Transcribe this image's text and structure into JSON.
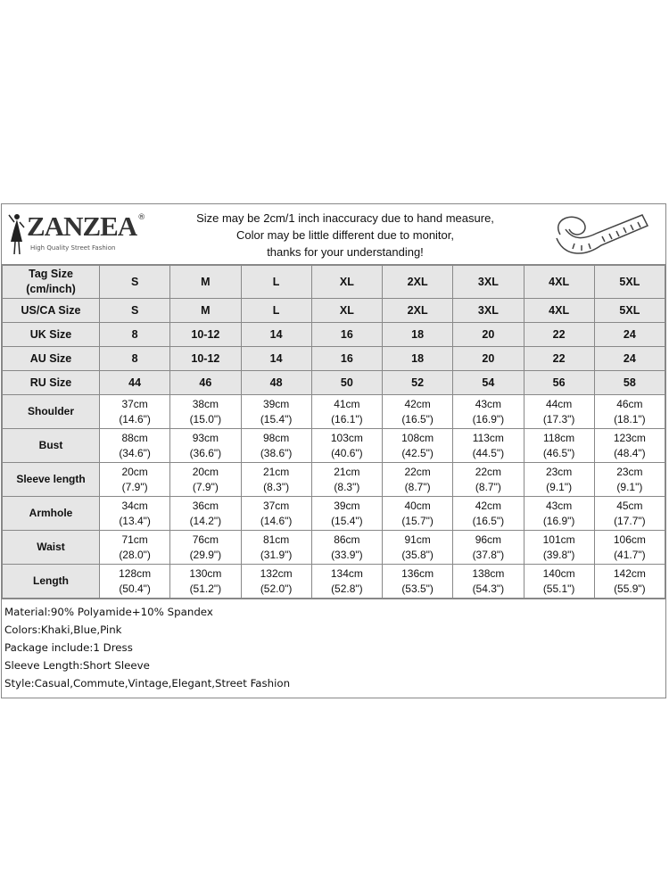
{
  "brand": {
    "name": "ZANZEA",
    "tagline": "High Quality Street Fashion",
    "reg": "®"
  },
  "notice": [
    "Size may be 2cm/1 inch inaccuracy due to hand measure,",
    "Color may be little different due to monitor,",
    "thanks for your understanding!"
  ],
  "size_rows": [
    {
      "label": "Tag Size\n(cm/inch)",
      "values": [
        "S",
        "M",
        "L",
        "XL",
        "2XL",
        "3XL",
        "4XL",
        "5XL"
      ]
    },
    {
      "label": "US/CA Size",
      "values": [
        "S",
        "M",
        "L",
        "XL",
        "2XL",
        "3XL",
        "4XL",
        "5XL"
      ]
    },
    {
      "label": "UK Size",
      "values": [
        "8",
        "10-12",
        "14",
        "16",
        "18",
        "20",
        "22",
        "24"
      ]
    },
    {
      "label": "AU Size",
      "values": [
        "8",
        "10-12",
        "14",
        "16",
        "18",
        "20",
        "22",
        "24"
      ]
    },
    {
      "label": "RU Size",
      "values": [
        "44",
        "46",
        "48",
        "50",
        "52",
        "54",
        "56",
        "58"
      ]
    }
  ],
  "measure_rows": [
    {
      "label": "Shoulder",
      "cm": [
        "37cm",
        "38cm",
        "39cm",
        "41cm",
        "42cm",
        "43cm",
        "44cm",
        "46cm"
      ],
      "inch": [
        "(14.6\")",
        "(15.0\")",
        "(15.4\")",
        "(16.1\")",
        "(16.5\")",
        "(16.9\")",
        "(17.3\")",
        "(18.1\")"
      ]
    },
    {
      "label": "Bust",
      "cm": [
        "88cm",
        "93cm",
        "98cm",
        "103cm",
        "108cm",
        "113cm",
        "118cm",
        "123cm"
      ],
      "inch": [
        "(34.6\")",
        "(36.6\")",
        "(38.6\")",
        "(40.6\")",
        "(42.5\")",
        "(44.5\")",
        "(46.5\")",
        "(48.4\")"
      ]
    },
    {
      "label": "Sleeve length",
      "cm": [
        "20cm",
        "20cm",
        "21cm",
        "21cm",
        "22cm",
        "22cm",
        "23cm",
        "23cm"
      ],
      "inch": [
        "(7.9\")",
        "(7.9\")",
        "(8.3\")",
        "(8.3\")",
        "(8.7\")",
        "(8.7\")",
        "(9.1\")",
        "(9.1\")"
      ]
    },
    {
      "label": "Armhole",
      "cm": [
        "34cm",
        "36cm",
        "37cm",
        "39cm",
        "40cm",
        "42cm",
        "43cm",
        "45cm"
      ],
      "inch": [
        "(13.4\")",
        "(14.2\")",
        "(14.6\")",
        "(15.4\")",
        "(15.7\")",
        "(16.5\")",
        "(16.9\")",
        "(17.7\")"
      ]
    },
    {
      "label": "Waist",
      "cm": [
        "71cm",
        "76cm",
        "81cm",
        "86cm",
        "91cm",
        "96cm",
        "101cm",
        "106cm"
      ],
      "inch": [
        "(28.0\")",
        "(29.9\")",
        "(31.9\")",
        "(33.9\")",
        "(35.8\")",
        "(37.8\")",
        "(39.8\")",
        "(41.7\")"
      ]
    },
    {
      "label": "Length",
      "cm": [
        "128cm",
        "130cm",
        "132cm",
        "134cm",
        "136cm",
        "138cm",
        "140cm",
        "142cm"
      ],
      "inch": [
        "(50.4\")",
        "(51.2\")",
        "(52.0\")",
        "(52.8\")",
        "(53.5\")",
        "(54.3\")",
        "(55.1\")",
        "(55.9\")"
      ]
    }
  ],
  "info": [
    "Material:90% Polyamide+10% Spandex",
    "Colors:Khaki,Blue,Pink",
    "Package include:1 Dress",
    "Sleeve Length:Short Sleeve",
    "Style:Casual,Commute,Vintage,Elegant,Street Fashion"
  ]
}
